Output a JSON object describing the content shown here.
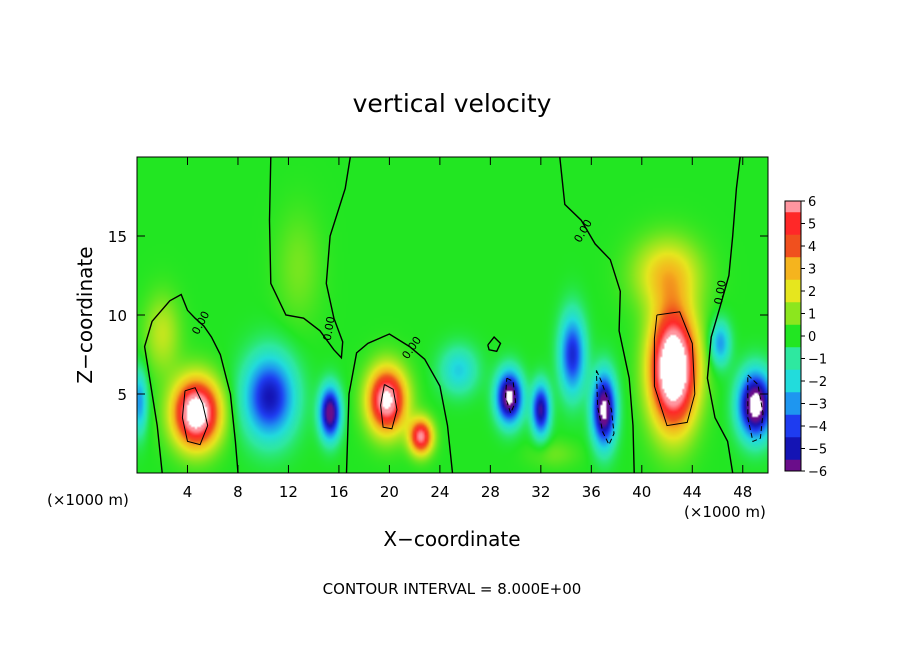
{
  "chart_data": {
    "type": "heatmap",
    "title": "vertical velocity",
    "xlabel": "X−coordinate",
    "ylabel": "Z−coordinate",
    "x_unit_label": "(×1000 m)",
    "x_unit_label_right": "(×1000 m)",
    "footer": "CONTOUR INTERVAL = 8.000E+00",
    "xlim": [
      0,
      50
    ],
    "ylim": [
      0,
      20
    ],
    "x_ticks": [
      4,
      8,
      12,
      16,
      20,
      24,
      28,
      32,
      36,
      40,
      44,
      48
    ],
    "y_ticks": [
      5,
      10,
      15
    ],
    "colorbar": {
      "min": -6,
      "max": 6,
      "tick_values": [
        6,
        5,
        4,
        3,
        2,
        1,
        0,
        -1,
        -2,
        -3,
        -4,
        -5,
        -6
      ],
      "tick_labels": [
        "6",
        "5",
        "4",
        "3",
        "2",
        "1",
        "0",
        "−1",
        "−2",
        "−3",
        "−4",
        "−5",
        "−6"
      ],
      "stops": [
        {
          "v": -6,
          "color": "#6a0d8a"
        },
        {
          "v": -5,
          "color": "#1414b4"
        },
        {
          "v": -4,
          "color": "#1e3cf0"
        },
        {
          "v": -3,
          "color": "#1e96f0"
        },
        {
          "v": -2,
          "color": "#22dcdc"
        },
        {
          "v": -1,
          "color": "#2ee8a0"
        },
        {
          "v": 0,
          "color": "#22e622"
        },
        {
          "v": 1,
          "color": "#8ce61e"
        },
        {
          "v": 2,
          "color": "#e6e61e"
        },
        {
          "v": 3,
          "color": "#f5b41e"
        },
        {
          "v": 4,
          "color": "#f0501e"
        },
        {
          "v": 5,
          "color": "#ff2828"
        },
        {
          "v": 6,
          "color": "#ff96a0"
        }
      ],
      "over_color": "#ffffff",
      "under_color": "#ffffff"
    },
    "features": [
      {
        "x": 4.7,
        "z": 3.8,
        "sx": 1.8,
        "sz": 2.1,
        "amp": 8
      },
      {
        "x": 2.0,
        "z": 8.8,
        "sx": 1.4,
        "sz": 2.4,
        "amp": 1.6
      },
      {
        "x": 10.5,
        "z": 4.8,
        "sx": 2.0,
        "sz": 2.6,
        "amp": -5
      },
      {
        "x": 15.3,
        "z": 3.8,
        "sx": 0.8,
        "sz": 1.6,
        "amp": -6.5
      },
      {
        "x": 12.8,
        "z": 13.0,
        "sx": 1.8,
        "sz": 3.5,
        "amp": 0.8
      },
      {
        "x": 19.8,
        "z": 4.6,
        "sx": 1.5,
        "sz": 2.0,
        "amp": 7
      },
      {
        "x": 22.5,
        "z": 2.3,
        "sx": 0.9,
        "sz": 1.1,
        "amp": 6
      },
      {
        "x": 25.5,
        "z": 6.5,
        "sx": 1.5,
        "sz": 1.5,
        "amp": -2.2
      },
      {
        "x": 29.5,
        "z": 4.8,
        "sx": 1.0,
        "sz": 1.6,
        "amp": -7
      },
      {
        "x": 32.0,
        "z": 4.0,
        "sx": 0.7,
        "sz": 1.6,
        "amp": -5.5
      },
      {
        "x": 34.5,
        "z": 7.5,
        "sx": 1.0,
        "sz": 2.5,
        "amp": -4.5
      },
      {
        "x": 37.0,
        "z": 4.0,
        "sx": 0.9,
        "sz": 2.2,
        "amp": -7
      },
      {
        "x": 33.0,
        "z": 1.2,
        "sx": 2.0,
        "sz": 0.9,
        "amp": 0.7
      },
      {
        "x": 42.5,
        "z": 6.6,
        "sx": 1.8,
        "sz": 3.6,
        "amp": 9
      },
      {
        "x": 42.0,
        "z": 12.6,
        "sx": 2.6,
        "sz": 2.2,
        "amp": 2.6
      },
      {
        "x": 49.0,
        "z": 4.3,
        "sx": 1.3,
        "sz": 2.0,
        "amp": -7.5
      },
      {
        "x": 46.2,
        "z": 8.2,
        "sx": 0.8,
        "sz": 1.4,
        "amp": -3
      },
      {
        "x": 0.2,
        "z": 4.5,
        "sx": 0.6,
        "sz": 2.0,
        "amp": -3
      }
    ],
    "zero_contours": [
      [
        [
          2.0,
          0.0
        ],
        [
          1.6,
          3.0
        ],
        [
          1.1,
          5.5
        ],
        [
          0.6,
          8.0
        ],
        [
          1.2,
          9.6
        ],
        [
          2.6,
          10.9
        ],
        [
          3.5,
          11.3
        ],
        [
          4.0,
          10.3
        ],
        [
          4.6,
          9.8
        ],
        [
          5.3,
          9.3
        ],
        [
          5.9,
          8.6
        ],
        [
          6.6,
          7.5
        ],
        [
          7.4,
          5.0
        ],
        [
          7.8,
          2.0
        ],
        [
          8.0,
          0.0
        ]
      ],
      [
        [
          10.6,
          20.0
        ],
        [
          10.5,
          16.0
        ],
        [
          10.6,
          12.0
        ],
        [
          11.8,
          10.0
        ],
        [
          13.2,
          9.8
        ],
        [
          14.5,
          9.0
        ],
        [
          15.6,
          7.8
        ],
        [
          16.2,
          7.3
        ],
        [
          16.3,
          8.3
        ],
        [
          15.6,
          9.8
        ],
        [
          15.0,
          12.0
        ],
        [
          15.3,
          15.0
        ],
        [
          16.5,
          18.0
        ],
        [
          16.9,
          20.0
        ]
      ],
      [
        [
          16.6,
          0.0
        ],
        [
          16.8,
          5.0
        ],
        [
          17.4,
          7.6
        ],
        [
          18.3,
          8.2
        ],
        [
          20.0,
          8.8
        ],
        [
          21.6,
          8.0
        ],
        [
          22.8,
          7.2
        ],
        [
          24.0,
          5.5
        ],
        [
          24.6,
          3.0
        ],
        [
          25.0,
          0.0
        ]
      ],
      [
        [
          33.5,
          20.0
        ],
        [
          33.9,
          17.0
        ],
        [
          35.2,
          16.0
        ],
        [
          36.3,
          14.5
        ],
        [
          37.5,
          13.5
        ],
        [
          38.3,
          11.5
        ],
        [
          38.2,
          9.0
        ],
        [
          39.0,
          6.0
        ],
        [
          39.3,
          3.0
        ],
        [
          39.4,
          0.0
        ]
      ],
      [
        [
          47.2,
          0.0
        ],
        [
          46.8,
          2.0
        ],
        [
          45.8,
          3.5
        ],
        [
          45.2,
          6.0
        ],
        [
          45.5,
          8.6
        ],
        [
          46.2,
          10.5
        ],
        [
          46.9,
          12.5
        ],
        [
          47.2,
          15.0
        ],
        [
          47.5,
          18.0
        ],
        [
          47.8,
          20.0
        ]
      ],
      [
        [
          27.8,
          8.1
        ],
        [
          28.3,
          8.6
        ],
        [
          28.8,
          8.2
        ],
        [
          28.5,
          7.7
        ],
        [
          27.9,
          7.8
        ],
        [
          27.8,
          8.1
        ]
      ]
    ],
    "solid_contours": [
      [
        [
          3.8,
          5.2
        ],
        [
          4.6,
          5.4
        ],
        [
          5.2,
          4.4
        ],
        [
          5.6,
          3.0
        ],
        [
          5.0,
          1.8
        ],
        [
          4.0,
          2.0
        ],
        [
          3.6,
          3.5
        ],
        [
          3.8,
          5.2
        ]
      ],
      [
        [
          19.6,
          5.6
        ],
        [
          20.3,
          5.3
        ],
        [
          20.6,
          4.0
        ],
        [
          20.2,
          2.8
        ],
        [
          19.5,
          2.9
        ],
        [
          19.3,
          4.3
        ],
        [
          19.6,
          5.6
        ]
      ],
      [
        [
          41.2,
          10.0
        ],
        [
          43.0,
          10.2
        ],
        [
          44.0,
          8.2
        ],
        [
          44.2,
          5.0
        ],
        [
          43.6,
          3.2
        ],
        [
          42.0,
          3.0
        ],
        [
          41.0,
          5.5
        ],
        [
          41.0,
          8.5
        ],
        [
          41.2,
          10.0
        ]
      ]
    ],
    "dashed_contours": [
      [
        [
          29.3,
          6.0
        ],
        [
          29.8,
          5.8
        ],
        [
          30.0,
          4.5
        ],
        [
          29.6,
          3.8
        ],
        [
          29.2,
          4.8
        ],
        [
          29.3,
          6.0
        ]
      ],
      [
        [
          36.4,
          6.5
        ],
        [
          36.8,
          5.8
        ],
        [
          37.6,
          4.0
        ],
        [
          37.8,
          2.5
        ],
        [
          37.4,
          1.8
        ],
        [
          36.9,
          2.6
        ],
        [
          36.5,
          4.2
        ],
        [
          36.4,
          6.5
        ]
      ],
      [
        [
          48.4,
          6.2
        ],
        [
          49.2,
          5.6
        ],
        [
          49.6,
          3.8
        ],
        [
          49.4,
          2.2
        ],
        [
          48.8,
          2.0
        ],
        [
          48.4,
          3.5
        ],
        [
          48.4,
          6.2
        ]
      ]
    ],
    "contour_labels": [
      {
        "text": "0.00",
        "x": 5.3,
        "z": 9.4,
        "angle": -62
      },
      {
        "text": "0.00",
        "x": 15.5,
        "z": 9.1,
        "angle": -80
      },
      {
        "text": "0.00",
        "x": 22.0,
        "z": 7.8,
        "angle": -55
      },
      {
        "text": "0.00",
        "x": 35.6,
        "z": 15.2,
        "angle": -60
      },
      {
        "text": "0.00",
        "x": 46.5,
        "z": 11.4,
        "angle": -80
      }
    ]
  }
}
